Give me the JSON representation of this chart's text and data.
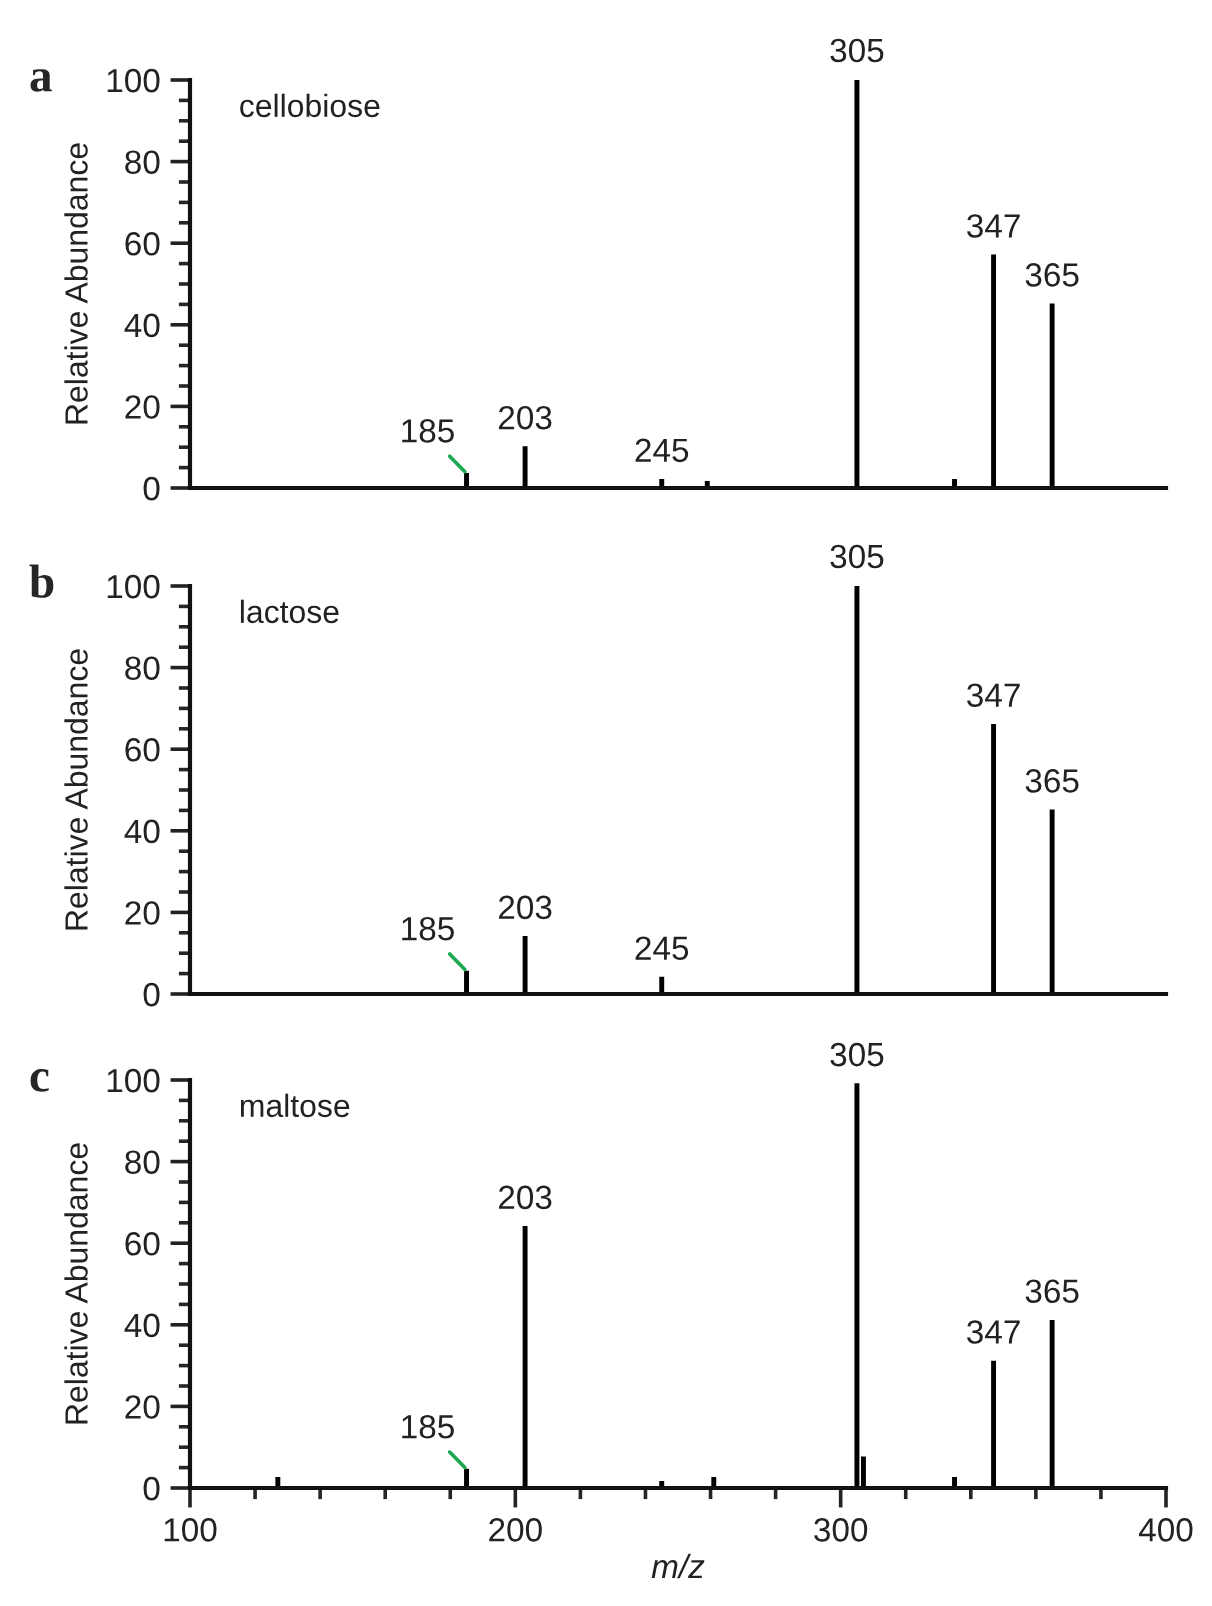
{
  "chart_data": [
    {
      "type": "bar",
      "title": "a",
      "subtitle": "cellobiose",
      "ylabel": "Relative Abundance",
      "tick_labels": "y",
      "grid": false,
      "legend": false,
      "x": [
        185,
        203,
        245,
        259,
        305,
        335,
        347,
        365
      ],
      "values": [
        3.5,
        10,
        2,
        1.5,
        100,
        2,
        57,
        45
      ],
      "color": "#000000",
      "xlim": [
        100,
        400
      ],
      "ylim": [
        0,
        100
      ],
      "yticks": [
        0,
        20,
        40,
        60,
        80,
        100
      ],
      "annotations": [
        {
          "text": "185",
          "x": 185,
          "y": 3.5
        },
        {
          "text": "203",
          "x": 203,
          "y": 10
        },
        {
          "text": "245",
          "x": 245,
          "y": 2
        },
        {
          "text": "305",
          "x": 305,
          "y": 100
        },
        {
          "text": "347",
          "x": 347,
          "y": 57
        },
        {
          "text": "365",
          "x": 365,
          "y": 45
        }
      ]
    },
    {
      "type": "bar",
      "title": "b",
      "subtitle": "lactose",
      "ylabel": "Relative Abundance",
      "tick_labels": "y",
      "grid": false,
      "legend": false,
      "x": [
        185,
        203,
        245,
        305,
        347,
        365
      ],
      "values": [
        5.5,
        14,
        4,
        100,
        66,
        45
      ],
      "color": "#000000",
      "xlim": [
        100,
        400
      ],
      "ylim": [
        0,
        100
      ],
      "yticks": [
        0,
        20,
        40,
        60,
        80,
        100
      ],
      "annotations": [
        {
          "text": "185",
          "x": 185,
          "y": 5.5
        },
        {
          "text": "203",
          "x": 203,
          "y": 14
        },
        {
          "text": "245",
          "x": 245,
          "y": 4
        },
        {
          "text": "305",
          "x": 305,
          "y": 100
        },
        {
          "text": "347",
          "x": 347,
          "y": 66
        },
        {
          "text": "365",
          "x": 365,
          "y": 45
        }
      ]
    },
    {
      "type": "bar",
      "title": "c",
      "subtitle": "maltose",
      "ylabel": "Relative Abundance",
      "xlabel": "m/z",
      "grid": false,
      "legend": false,
      "x": [
        127,
        185,
        203,
        245,
        261,
        305,
        307,
        335,
        347,
        365
      ],
      "values": [
        2.5,
        4.5,
        64,
        1.5,
        2.5,
        99,
        7.5,
        2.5,
        31,
        41
      ],
      "color": "#000000",
      "xlim": [
        100,
        400
      ],
      "xticks": [
        100,
        200,
        300,
        400
      ],
      "ylim": [
        0,
        100
      ],
      "yticks": [
        0,
        20,
        40,
        60,
        80,
        100
      ],
      "annotations": [
        {
          "text": "185",
          "x": 185,
          "y": 4.5
        },
        {
          "text": "203",
          "x": 203,
          "y": 64
        },
        {
          "text": "305",
          "x": 305,
          "y": 99
        },
        {
          "text": "347",
          "x": 347,
          "y": 31
        },
        {
          "text": "365",
          "x": 365,
          "y": 41
        }
      ]
    }
  ]
}
